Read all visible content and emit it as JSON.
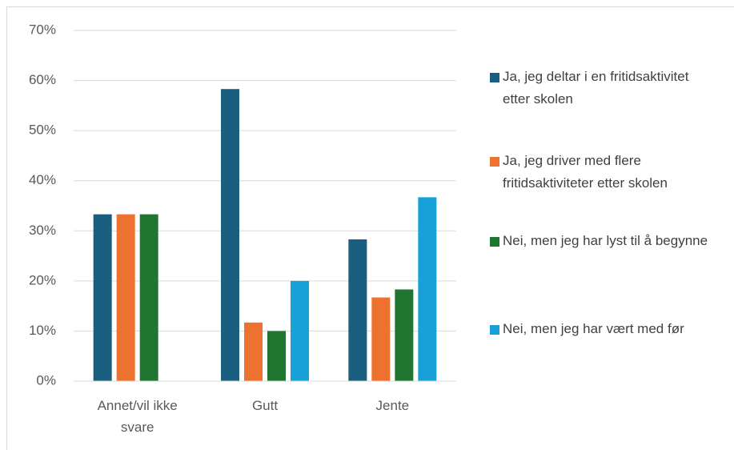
{
  "chart_data": {
    "type": "bar",
    "categories": [
      "Annet/vil ikke svare",
      "Gutt",
      "Jente"
    ],
    "series": [
      {
        "name": "Ja, jeg deltar i en fritidsaktivitet etter skolen",
        "color": "#1a5e80",
        "values": [
          33.3,
          58.3,
          28.3
        ]
      },
      {
        "name": "Ja, jeg driver med flere fritidsaktiviteter etter skolen",
        "color": "#ed7230",
        "values": [
          33.3,
          11.7,
          16.7
        ]
      },
      {
        "name": "Nei, men jeg har lyst til å begynne",
        "color": "#1e7631",
        "values": [
          33.3,
          10,
          18.3
        ]
      },
      {
        "name": "Nei, men jeg har vært med før",
        "color": "#18a0d8",
        "values": [
          0,
          20,
          36.7
        ]
      }
    ],
    "ylim": [
      0,
      70
    ],
    "yticks": [
      {
        "value": 0,
        "label": "0%"
      },
      {
        "value": 10,
        "label": "10%"
      },
      {
        "value": 20,
        "label": "20%"
      },
      {
        "value": 30,
        "label": "30%"
      },
      {
        "value": 40,
        "label": "40%"
      },
      {
        "value": 50,
        "label": "50%"
      },
      {
        "value": 60,
        "label": "60%"
      },
      {
        "value": 70,
        "label": "70%"
      }
    ],
    "grid": true,
    "legend": "right"
  }
}
